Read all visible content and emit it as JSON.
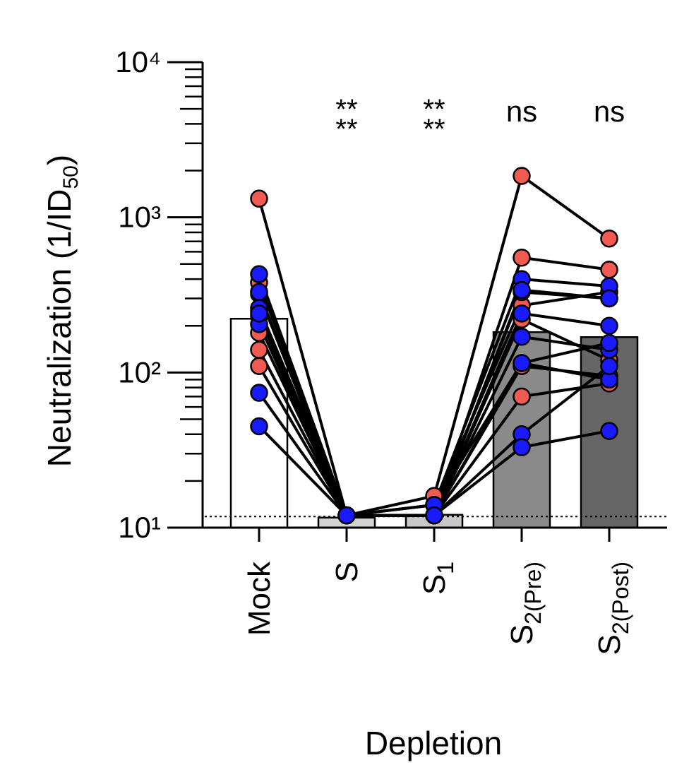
{
  "chart_data": {
    "type": "paired-bar",
    "y_label": "Neutralization (1/ID",
    "y_label_sub": "50",
    "y_label_end": ")",
    "x_label": "Depletion",
    "categories": [
      "Mock",
      "S",
      "S",
      "S",
      "S"
    ],
    "category_subscripts": [
      null,
      null,
      "1",
      "2(Pre)",
      "2(Post)"
    ],
    "annotations": [
      null,
      [
        "**",
        "**"
      ],
      [
        "**",
        "**"
      ],
      [
        "ns"
      ],
      [
        "ns"
      ]
    ],
    "log_scale": true,
    "ylim": [
      10,
      10000
    ],
    "yticks": [
      {
        "value": 10,
        "label": "10¹"
      },
      {
        "value": 100,
        "label": "10²"
      },
      {
        "value": 1000,
        "label": "10³"
      },
      {
        "value": 10000,
        "label": "10⁴"
      }
    ],
    "detection_limit": 11.8,
    "bars": {
      "values": [
        222,
        11.6,
        12.1,
        182,
        169
      ],
      "colors": [
        "#ffffff",
        "#d3d3d3",
        "#c8c8c8",
        "#8a8a8a",
        "#666666"
      ]
    },
    "subjects": [
      {
        "color": "#f05a50",
        "values": [
          1320,
          12,
          16,
          1850,
          730
        ]
      },
      {
        "color": "#f05a50",
        "values": [
          380,
          12,
          12,
          550,
          460
        ]
      },
      {
        "color": "#f05a50",
        "values": [
          320,
          12,
          14,
          270,
          330
        ]
      },
      {
        "color": "#f05a50",
        "values": [
          250,
          12,
          12,
          70,
          85
        ]
      },
      {
        "color": "#f05a50",
        "values": [
          180,
          12,
          12,
          220,
          120
        ]
      },
      {
        "color": "#f05a50",
        "values": [
          140,
          12,
          12,
          110,
          95
        ]
      },
      {
        "color": "#f05a50",
        "values": [
          110,
          12,
          12,
          330,
          300
        ]
      },
      {
        "color": "#1a1aff",
        "values": [
          430,
          12,
          14,
          400,
          360
        ]
      },
      {
        "color": "#1a1aff",
        "values": [
          330,
          12,
          12,
          340,
          300
        ]
      },
      {
        "color": "#1a1aff",
        "values": [
          260,
          12,
          12,
          240,
          200
        ]
      },
      {
        "color": "#1a1aff",
        "values": [
          230,
          12,
          12,
          170,
          140
        ]
      },
      {
        "color": "#1a1aff",
        "values": [
          205,
          12,
          14,
          115,
          155
        ]
      },
      {
        "color": "#1a1aff",
        "values": [
          240,
          12,
          12,
          115,
          90
        ]
      },
      {
        "color": "#1a1aff",
        "values": [
          74,
          12,
          12,
          40,
          110
        ]
      },
      {
        "color": "#1a1aff",
        "values": [
          45,
          12,
          12,
          33,
          42
        ]
      }
    ]
  }
}
